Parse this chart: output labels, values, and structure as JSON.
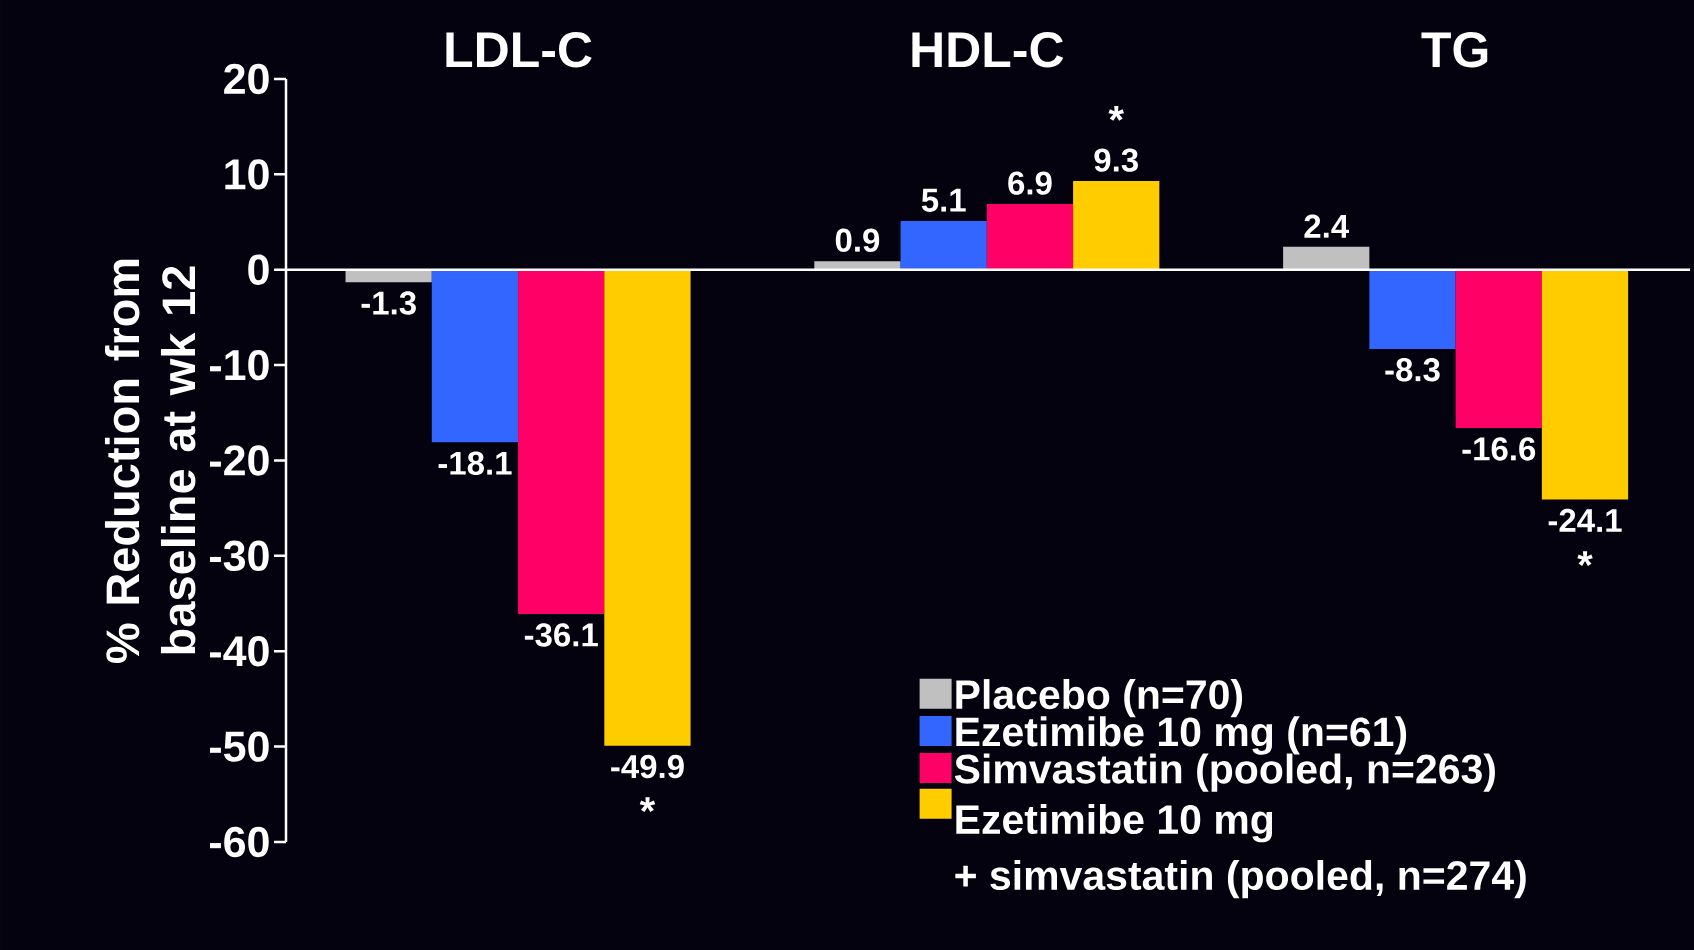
{
  "chart_data": {
    "type": "bar",
    "ylabel": "% Reduction from baseline at wk 12",
    "categories": [
      "LDL-C",
      "HDL-C",
      "TG"
    ],
    "series": [
      {
        "name": "Placebo (n=70)",
        "color": "#c0c0c0",
        "values": [
          -1.3,
          0.9,
          2.4
        ]
      },
      {
        "name": "Ezetimibe 10 mg (n=61)",
        "color": "#3366ff",
        "values": [
          -18.1,
          5.1,
          -8.3
        ]
      },
      {
        "name": "Simvastatin (pooled, n=263)",
        "color": "#ff0066",
        "values": [
          -36.1,
          6.9,
          -16.6
        ]
      },
      {
        "name": "Ezetimibe 10 mg + simvastatin (pooled, n=274)",
        "color": "#ffcc00",
        "values": [
          -49.9,
          9.3,
          -24.1
        ]
      }
    ],
    "ylim": [
      -60,
      20
    ],
    "yticks": [
      -60,
      -50,
      -40,
      -30,
      -20,
      -10,
      0,
      10,
      20
    ],
    "data_labels": true,
    "legend": "bottom right",
    "annotations": [
      "*",
      "*",
      "*"
    ]
  }
}
